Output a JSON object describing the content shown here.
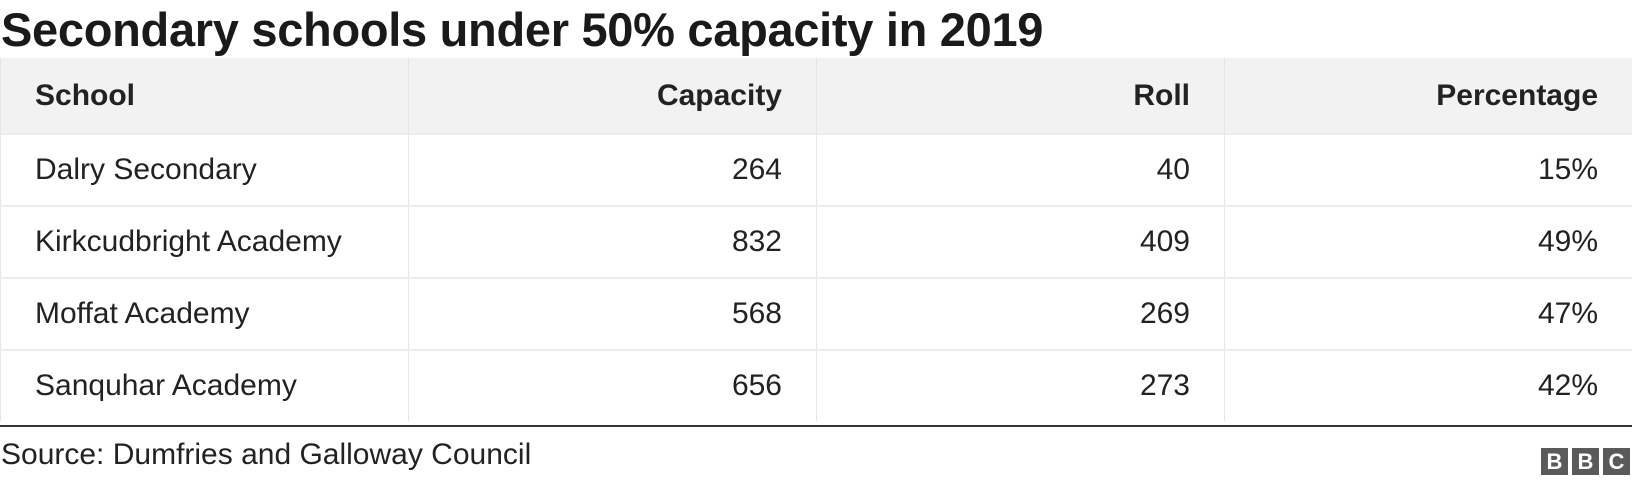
{
  "title": "Secondary schools under 50% capacity in 2019",
  "chart_data": {
    "type": "table",
    "title": "Secondary schools under 50% capacity in 2019",
    "columns": [
      "School",
      "Capacity",
      "Roll",
      "Percentage"
    ],
    "rows": [
      [
        "Dalry Secondary",
        "264",
        "40",
        "15%"
      ],
      [
        "Kirkcudbright Academy",
        "832",
        "409",
        "49%"
      ],
      [
        "Moffat Academy",
        "568",
        "269",
        "47%"
      ],
      [
        "Sanquhar Academy",
        "656",
        "273",
        "42%"
      ]
    ]
  },
  "source": "Source: Dumfries and Galloway Council",
  "logo": {
    "letters": [
      "B",
      "B",
      "C"
    ],
    "color": "#5a5a5a"
  },
  "colors": {
    "header_bg": "#f2f2f2",
    "text": "#222222",
    "rule": "#333333"
  }
}
